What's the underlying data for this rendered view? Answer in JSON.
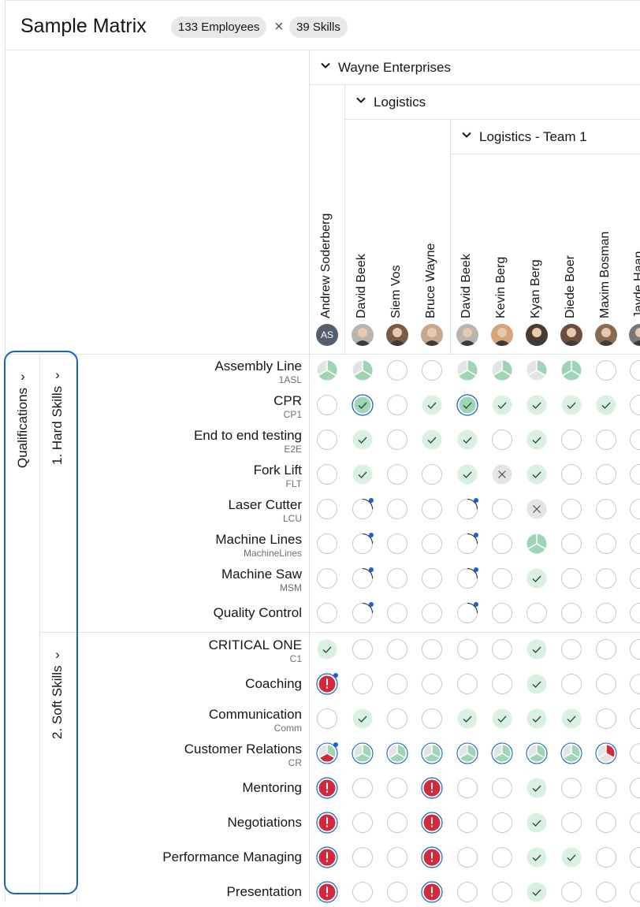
{
  "header": {
    "title": "Sample Matrix",
    "employees_tag": "133 Employees",
    "skills_tag": "39 Skills",
    "separator": "×"
  },
  "groups": {
    "company": "Wayne Enterprises",
    "department": "Logistics",
    "team": "Logistics - Team 1"
  },
  "employees": [
    {
      "name": "Andrew Soderberg",
      "initials": "AS"
    },
    {
      "name": "David Beek"
    },
    {
      "name": "Siem Vos"
    },
    {
      "name": "Bruce Wayne"
    },
    {
      "name": "David Beek"
    },
    {
      "name": "Kevin Berg"
    },
    {
      "name": "Kyan Berg"
    },
    {
      "name": "Diede Boer"
    },
    {
      "name": "Maxim Bosman"
    },
    {
      "name": "Jayde Haan"
    }
  ],
  "categories": {
    "qualifications": "Qualifications",
    "hard_skills": "1. Hard Skills",
    "soft_skills": "2. Soft Skills"
  },
  "skills": [
    {
      "name": "Assembly Line",
      "code": "1ASL"
    },
    {
      "name": "CPR",
      "code": "CP1"
    },
    {
      "name": "End to end testing",
      "code": "E2E"
    },
    {
      "name": "Fork Lift",
      "code": "FLT"
    },
    {
      "name": "Laser Cutter",
      "code": "LCU"
    },
    {
      "name": "Machine Lines",
      "code": "MachineLines"
    },
    {
      "name": "Machine Saw",
      "code": "MSM"
    },
    {
      "name": "Quality Control",
      "code": ""
    },
    {
      "name": "CRITICAL ONE",
      "code": "C1"
    },
    {
      "name": "Coaching",
      "code": ""
    },
    {
      "name": "Communication",
      "code": "Comm"
    },
    {
      "name": "Customer Relations",
      "code": "CR"
    },
    {
      "name": "Mentoring",
      "code": ""
    },
    {
      "name": "Negotiations",
      "code": ""
    },
    {
      "name": "Performance Managing",
      "code": ""
    },
    {
      "name": "Presentation",
      "code": ""
    }
  ],
  "status_legend": {
    "e": "empty",
    "c": "check",
    "cs": "check-selected",
    "p2": "pie-two-thirds",
    "p1": "pie-one-third",
    "p3": "pie-full",
    "x": "cross",
    "d": "empty-with-dot",
    "r": "critical",
    "rd": "critical-with-dot",
    "cr": "customer-relations-pie",
    "crd": "customer-relations-pie-with-dot",
    "cx": "customer-relations-red"
  },
  "colors": {
    "accent": "#1565c0",
    "green": "#9fd4b5",
    "green_light": "#d9f0e2",
    "red": "#d12a3c",
    "dot": "#1a5fd6",
    "grey": "#e4e4e4"
  },
  "matrix": [
    [
      "p2",
      "p2",
      "e",
      "e",
      "p2",
      "p2",
      "p1",
      "p3",
      "e",
      "e"
    ],
    [
      "e",
      "cs",
      "e",
      "c",
      "cs",
      "c",
      "c",
      "c",
      "c",
      "e"
    ],
    [
      "e",
      "c",
      "e",
      "c",
      "c",
      "e",
      "c",
      "e",
      "e",
      "e"
    ],
    [
      "e",
      "c",
      "e",
      "e",
      "c",
      "x",
      "c",
      "e",
      "e",
      "e"
    ],
    [
      "e",
      "d",
      "e",
      "e",
      "d",
      "e",
      "x",
      "e",
      "e",
      "e"
    ],
    [
      "e",
      "d",
      "e",
      "e",
      "d",
      "e",
      "p3",
      "e",
      "e",
      "e"
    ],
    [
      "e",
      "d",
      "e",
      "e",
      "d",
      "e",
      "c",
      "e",
      "e",
      "e"
    ],
    [
      "e",
      "d",
      "e",
      "e",
      "d",
      "e",
      "e",
      "e",
      "e",
      "e"
    ],
    [
      "c",
      "e",
      "e",
      "e",
      "e",
      "e",
      "c",
      "e",
      "e",
      "e"
    ],
    [
      "rd",
      "e",
      "e",
      "e",
      "e",
      "e",
      "c",
      "e",
      "e",
      "e"
    ],
    [
      "e",
      "c",
      "e",
      "e",
      "c",
      "c",
      "c",
      "c",
      "e",
      "e"
    ],
    [
      "crd",
      "cr",
      "cr",
      "cr",
      "cr",
      "cr",
      "cr",
      "cr",
      "cx",
      "e"
    ],
    [
      "r",
      "e",
      "e",
      "r",
      "e",
      "e",
      "c",
      "e",
      "e",
      "e"
    ],
    [
      "r",
      "e",
      "e",
      "r",
      "e",
      "e",
      "c",
      "e",
      "e",
      "e"
    ],
    [
      "r",
      "e",
      "e",
      "r",
      "e",
      "e",
      "c",
      "c",
      "e",
      "e"
    ],
    [
      "r",
      "e",
      "e",
      "r",
      "e",
      "e",
      "c",
      "e",
      "e",
      "e"
    ]
  ]
}
